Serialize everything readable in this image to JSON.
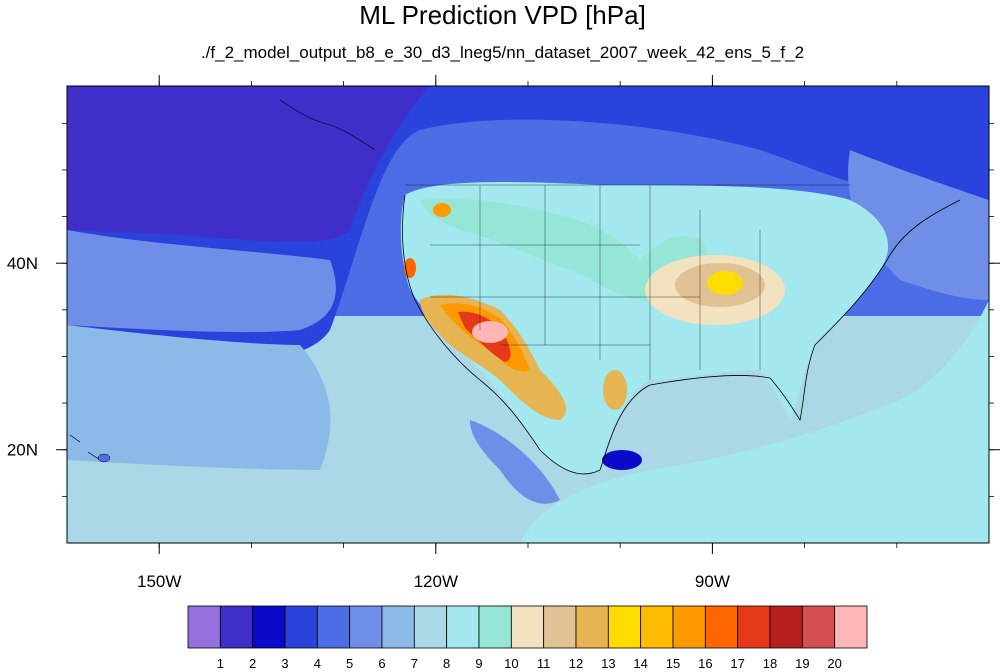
{
  "title": "ML Prediction VPD [hPa]",
  "subtitle": "./f_2_model_output_b8_e_30_d3_lneg5/nn_dataset_2007_week_42_ens_5_f_2",
  "map": {
    "lon_range": [
      -160,
      -60
    ],
    "lat_range": [
      10,
      59
    ],
    "lon_ticks": [
      {
        "value": -150,
        "label": "150W"
      },
      {
        "value": -120,
        "label": "120W"
      },
      {
        "value": -90,
        "label": "90W"
      }
    ],
    "lat_ticks": [
      {
        "value": 40,
        "label": "40N"
      },
      {
        "value": 20,
        "label": "20N"
      }
    ]
  },
  "colorbar": {
    "levels": [
      "1",
      "2",
      "3",
      "4",
      "5",
      "6",
      "7",
      "8",
      "9",
      "10",
      "11",
      "12",
      "13",
      "14",
      "15",
      "16",
      "17",
      "18",
      "19",
      "20"
    ],
    "colors": [
      "#9370db",
      "#3f2fc8",
      "#0a0ac8",
      "#2a43dc",
      "#4b6ee6",
      "#6e8ee8",
      "#8cbae8",
      "#aad8e6",
      "#a2e8ee",
      "#95e6d6",
      "#f2e2c0",
      "#e0c294",
      "#e6b450",
      "#ffdc00",
      "#ffbb00",
      "#ff9900",
      "#ff6600",
      "#e8381a",
      "#b82020",
      "#d45050",
      "#ffb6b6"
    ]
  }
}
